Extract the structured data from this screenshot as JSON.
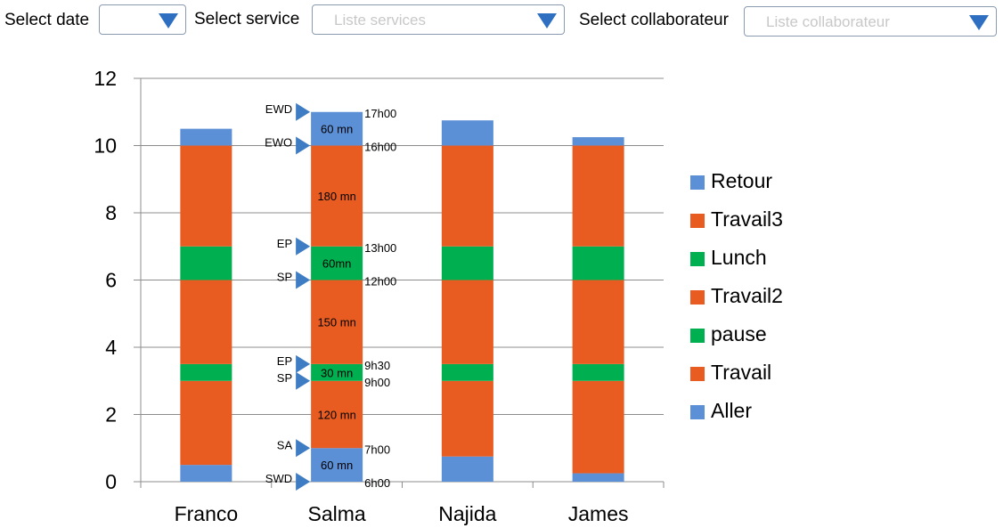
{
  "filters": {
    "date": {
      "label": "Select date",
      "placeholder": ""
    },
    "service": {
      "label": "Select service",
      "placeholder": "Liste services"
    },
    "collaborateur": {
      "label": "Select collaborateur",
      "placeholder": "Liste collaborateur"
    }
  },
  "colors": {
    "aller_retour": "#5b8fd6",
    "travail": "#e85c22",
    "pause_lunch": "#00b050",
    "marker": "#3e7cc4"
  },
  "chart_data": {
    "type": "bar",
    "stacked": true,
    "categories": [
      "Franco",
      "Salma",
      "Najida",
      "James"
    ],
    "ylim": [
      0,
      12
    ],
    "yticks": [
      0,
      2,
      4,
      6,
      8,
      10,
      12
    ],
    "grid": true,
    "legend_position": "right",
    "series": [
      {
        "name": "Aller",
        "color": "#5b8fd6",
        "values": [
          0.5,
          1,
          0.75,
          0.25
        ]
      },
      {
        "name": "Travail",
        "color": "#e85c22",
        "values": [
          2.5,
          2,
          2.25,
          2.75
        ]
      },
      {
        "name": "pause",
        "color": "#00b050",
        "values": [
          0.5,
          0.5,
          0.5,
          0.5
        ]
      },
      {
        "name": "Travail2",
        "color": "#e85c22",
        "values": [
          2.5,
          2.5,
          2.5,
          2.5
        ]
      },
      {
        "name": "Lunch",
        "color": "#00b050",
        "values": [
          1,
          1,
          1,
          1
        ]
      },
      {
        "name": "Travail3",
        "color": "#e85c22",
        "values": [
          3,
          3,
          3,
          3
        ]
      },
      {
        "name": "Retour",
        "color": "#5b8fd6",
        "values": [
          0.5,
          1,
          0.75,
          0.25
        ]
      }
    ],
    "legend_order": [
      "Retour",
      "Travail3",
      "Lunch",
      "Travail2",
      "pause",
      "Travail",
      "Aller"
    ],
    "segment_labels": {
      "category": "Salma",
      "items": [
        {
          "y": 0.5,
          "text": "60 mn"
        },
        {
          "y": 2,
          "text": "120 mn"
        },
        {
          "y": 3.25,
          "text": "30 mn"
        },
        {
          "y": 4.75,
          "text": "150 mn"
        },
        {
          "y": 6.5,
          "text": "60mn"
        },
        {
          "y": 8.5,
          "text": "180 mn"
        },
        {
          "y": 10.5,
          "text": "60 mn"
        }
      ]
    },
    "time_markers": [
      {
        "y": 0,
        "code": "SWD",
        "time": "6h00"
      },
      {
        "y": 1,
        "code": "SA",
        "time": "7h00"
      },
      {
        "y": 3,
        "code": "SP",
        "time": "9h00"
      },
      {
        "y": 3.5,
        "code": "EP",
        "time": "9h30"
      },
      {
        "y": 6,
        "code": "SP",
        "time": "12h00"
      },
      {
        "y": 7,
        "code": "EP",
        "time": "13h00"
      },
      {
        "y": 10,
        "code": "EWO",
        "time": "16h00"
      },
      {
        "y": 11,
        "code": "EWD",
        "time": "17h00"
      }
    ]
  }
}
